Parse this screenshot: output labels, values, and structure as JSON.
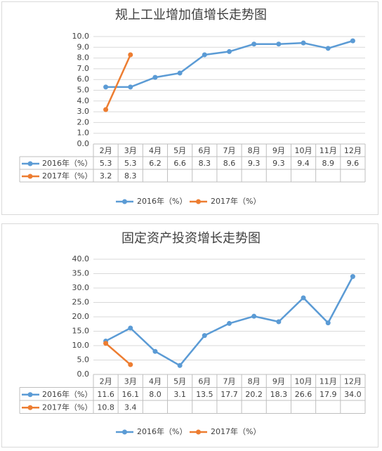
{
  "chart_data": [
    {
      "type": "line",
      "title": "规上工业增加值增长走势图",
      "categories": [
        "2月",
        "3月",
        "4月",
        "5月",
        "6月",
        "7月",
        "8月",
        "9月",
        "10月",
        "11月",
        "12月"
      ],
      "series": [
        {
          "name": "2016年（%）",
          "color": "#5b9bd5",
          "values": [
            5.3,
            5.3,
            6.2,
            6.6,
            8.3,
            8.6,
            9.3,
            9.3,
            9.4,
            8.9,
            9.6
          ],
          "value_labels": [
            "5.3",
            "5.3",
            "6.2",
            "6.6",
            "8.3",
            "8.6",
            "9.3",
            "9.3",
            "9.4",
            "8.9",
            "9.6"
          ]
        },
        {
          "name": "2017年（%）",
          "color": "#ed7d31",
          "values": [
            3.2,
            8.3,
            null,
            null,
            null,
            null,
            null,
            null,
            null,
            null,
            null
          ],
          "value_labels": [
            "3.2",
            "8.3",
            null,
            null,
            null,
            null,
            null,
            null,
            null,
            null,
            null
          ]
        }
      ],
      "ylim": [
        0,
        10
      ],
      "yticks": [
        {
          "value": 0,
          "label": "0.0"
        },
        {
          "value": 1,
          "label": "1.0"
        },
        {
          "value": 2,
          "label": "2.0"
        },
        {
          "value": 3,
          "label": "3.0"
        },
        {
          "value": 4,
          "label": "4.0"
        },
        {
          "value": 5,
          "label": "5.0"
        },
        {
          "value": 6,
          "label": "6.0"
        },
        {
          "value": 7,
          "label": "7.0"
        },
        {
          "value": 8,
          "label": "8.0"
        },
        {
          "value": 9,
          "label": "9.0"
        },
        {
          "value": 10,
          "label": "10.0"
        }
      ],
      "grid": true,
      "legend": "bottom"
    },
    {
      "type": "line",
      "title": "固定资产投资增长走势图",
      "categories": [
        "2月",
        "3月",
        "4月",
        "5月",
        "6月",
        "7月",
        "8月",
        "9月",
        "10月",
        "11月",
        "12月"
      ],
      "series": [
        {
          "name": "2016年（%）",
          "color": "#5b9bd5",
          "values": [
            11.6,
            16.1,
            8.0,
            3.1,
            13.5,
            17.7,
            20.2,
            18.3,
            26.6,
            17.9,
            34.0
          ],
          "value_labels": [
            "11.6",
            "16.1",
            "8.0",
            "3.1",
            "13.5",
            "17.7",
            "20.2",
            "18.3",
            "26.6",
            "17.9",
            "34.0"
          ]
        },
        {
          "name": "2017年（%）",
          "color": "#ed7d31",
          "values": [
            10.8,
            3.4,
            null,
            null,
            null,
            null,
            null,
            null,
            null,
            null,
            null
          ],
          "value_labels": [
            "10.8",
            "3.4",
            null,
            null,
            null,
            null,
            null,
            null,
            null,
            null,
            null
          ]
        }
      ],
      "ylim": [
        0,
        40
      ],
      "yticks": [
        {
          "value": 0,
          "label": "0.0"
        },
        {
          "value": 5,
          "label": "5.0"
        },
        {
          "value": 10,
          "label": "10.0"
        },
        {
          "value": 15,
          "label": "15.0"
        },
        {
          "value": 20,
          "label": "20.0"
        },
        {
          "value": 25,
          "label": "25.0"
        },
        {
          "value": 30,
          "label": "30.0"
        },
        {
          "value": 35,
          "label": "35.0"
        },
        {
          "value": 40,
          "label": "40.0"
        }
      ],
      "grid": true,
      "legend": "bottom"
    }
  ]
}
